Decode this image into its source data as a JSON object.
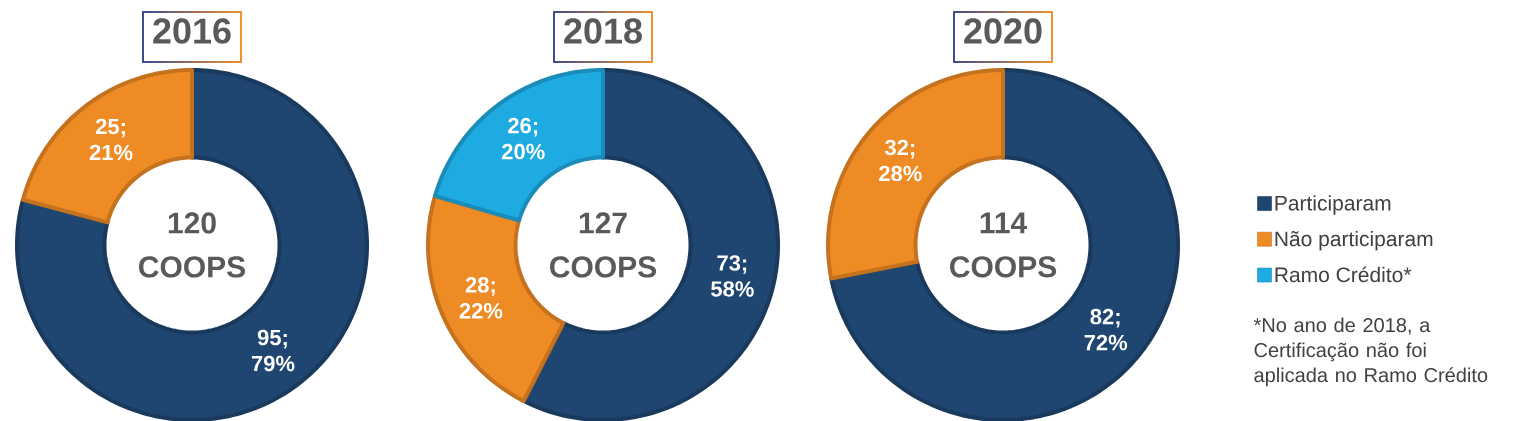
{
  "chart_data": [
    {
      "type": "donut",
      "title": "2016",
      "categories": [
        null,
        null
      ],
      "values": [
        95,
        25
      ],
      "colors": [
        "#1f4571",
        "#ef8b25"
      ],
      "value_labels": [
        "95; 79%",
        "25; 21%"
      ],
      "annotations": [
        "120 COOPS"
      ]
    },
    {
      "type": "donut",
      "title": "2018",
      "categories": [
        "Participaram",
        "Não participaram",
        "Ramo Crédito*"
      ],
      "values": [
        73,
        28,
        26
      ],
      "colors": [
        "#1f4571",
        "#ef8b25",
        "#1eabe2"
      ],
      "value_labels": [
        "73; 58%",
        "28; 22%",
        "26; 20%"
      ],
      "annotations": [
        "127 COOPS",
        "*No ano de 2018, a Certificação não foi aplicada no Ramo Crédito"
      ],
      "legend": "right"
    },
    {
      "type": "donut",
      "title": "2020",
      "categories": [
        null,
        null
      ],
      "values": [
        82,
        32
      ],
      "colors": [
        "#1f4571",
        "#ef8b25"
      ],
      "value_labels": [
        "82; 72%",
        "32; 28%"
      ],
      "annotations": [
        "114 COOPS"
      ]
    }
  ]
}
